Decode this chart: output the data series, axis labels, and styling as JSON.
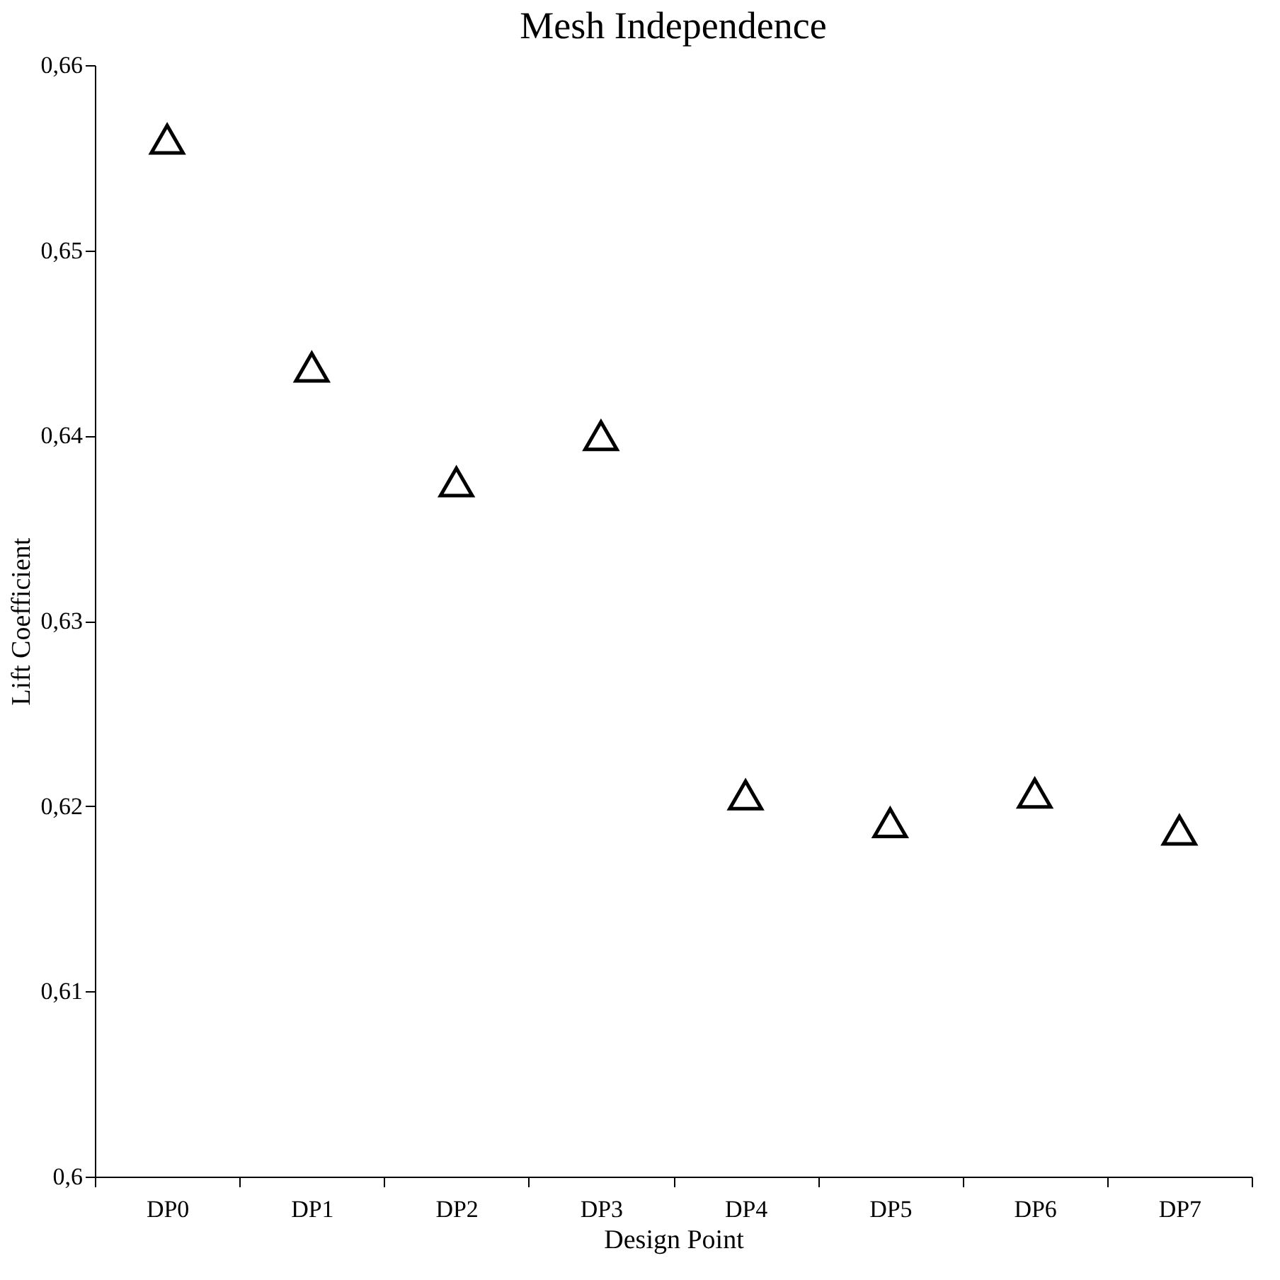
{
  "chart_data": {
    "type": "scatter",
    "title": "Mesh Independence",
    "xlabel": "Design Point",
    "ylabel": "Lift Coefficient",
    "categories": [
      "DP0",
      "DP1",
      "DP2",
      "DP3",
      "DP4",
      "DP5",
      "DP6",
      "DP7"
    ],
    "series": [
      {
        "color": "#000000",
        "values": [
          0.656,
          0.6437,
          0.6375,
          0.64,
          0.6206,
          0.6191,
          0.6207,
          0.6187
        ]
      }
    ],
    "ylim": [
      0.6,
      0.66
    ],
    "yticks": [
      {
        "value": 0.6,
        "label": "0,6"
      },
      {
        "value": 0.61,
        "label": "0,61"
      },
      {
        "value": 0.62,
        "label": "0,62"
      },
      {
        "value": 0.63,
        "label": "0,63"
      },
      {
        "value": 0.64,
        "label": "0,64"
      },
      {
        "value": 0.65,
        "label": "0,65"
      },
      {
        "value": 0.66,
        "label": "0,66"
      }
    ],
    "marker": "triangle",
    "grid": false
  }
}
